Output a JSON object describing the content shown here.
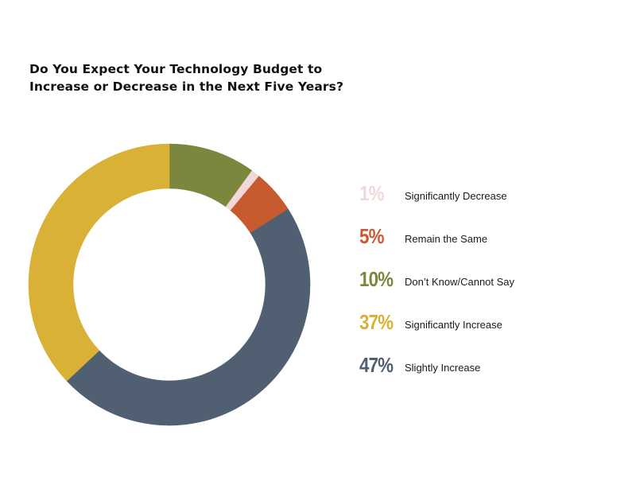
{
  "chart_data": {
    "type": "pie",
    "variant": "donut",
    "title": "Do You Expect Your Technology Budget to Increase or Decrease in the Next Five Years?",
    "title_lines": [
      "Do You Expect Your Technology Budget to",
      "Increase or Decrease in the Next Five Years?"
    ],
    "unit": "%",
    "start_angle_deg": 0,
    "direction": "clockwise",
    "legend_position": "right",
    "slices": [
      {
        "label": "Don’t Know/Cannot Say",
        "value": 10,
        "display": "10%",
        "color": "#7a873d"
      },
      {
        "label": "Significantly Decrease",
        "value": 1,
        "display": "1%",
        "color": "#f2d8d8"
      },
      {
        "label": "Remain the Same",
        "value": 5,
        "display": "5%",
        "color": "#c85a30"
      },
      {
        "label": "Slightly Increase",
        "value": 47,
        "display": "47%",
        "color": "#515f72"
      },
      {
        "label": "Significantly Increase",
        "value": 37,
        "display": "37%",
        "color": "#d8b136"
      }
    ],
    "legend_order": [
      {
        "display": "1%",
        "label": "Significantly Decrease",
        "color": "#f2d8d8"
      },
      {
        "display": "5%",
        "label": "Remain the Same",
        "color": "#c85a30"
      },
      {
        "display": "10%",
        "label": "Don’t Know/Cannot Say",
        "color": "#7a873d"
      },
      {
        "display": "37%",
        "label": "Significantly Increase",
        "color": "#d8b136"
      },
      {
        "display": "47%",
        "label": "Slightly Increase",
        "color": "#515f72"
      }
    ]
  }
}
